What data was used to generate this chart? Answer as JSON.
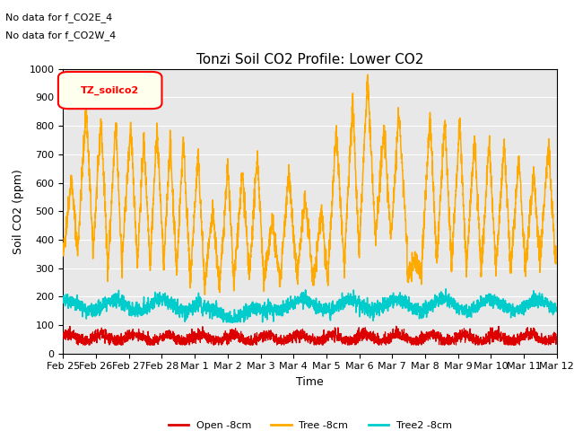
{
  "title": "Tonzi Soil CO2 Profile: Lower CO2",
  "xlabel": "Time",
  "ylabel": "Soil CO2 (ppm)",
  "ylim": [
    0,
    1000
  ],
  "legend_labels": [
    "Open -8cm",
    "Tree -8cm",
    "Tree2 -8cm"
  ],
  "legend_colors": [
    "#dd0000",
    "#ffaa00",
    "#00cccc"
  ],
  "annotation_lines": [
    "No data for f_CO2E_4",
    "No data for f_CO2W_4"
  ],
  "legend_box_label": "TZ_soilco2",
  "background_color": "#ffffff",
  "plot_bg_color": "#e8e8e8",
  "x_tick_labels": [
    "Feb 25",
    "Feb 26",
    "Feb 27",
    "Feb 28",
    "Mar 1",
    "Mar 2",
    "Mar 3",
    "Mar 4",
    "Mar 5",
    "Mar 6",
    "Mar 7",
    "Mar 8",
    "Mar 9",
    "Mar 10",
    "Mar 11",
    "Mar 12"
  ],
  "grid_color": "#ffffff"
}
